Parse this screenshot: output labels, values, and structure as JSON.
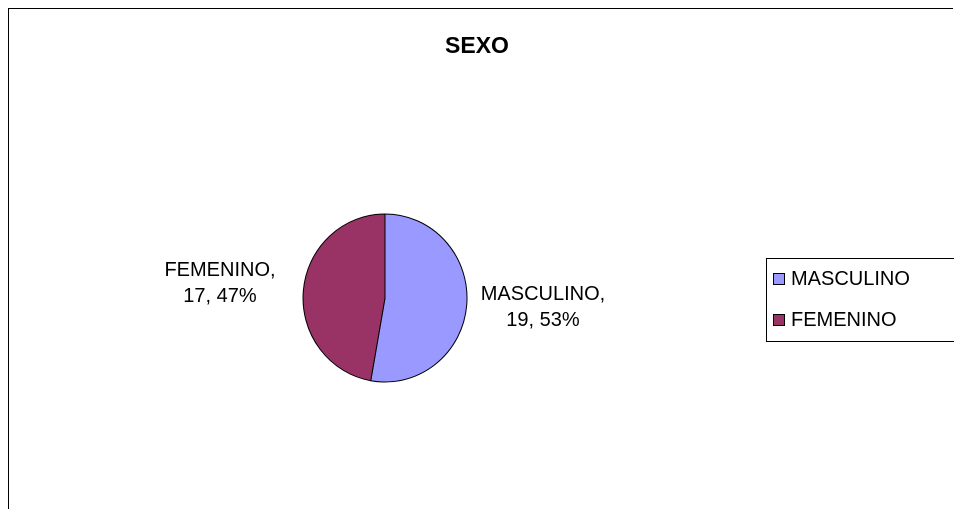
{
  "chart_data": {
    "type": "pie",
    "title": "SEXO",
    "categories": [
      "MASCULINO",
      "FEMENINO"
    ],
    "values": [
      19,
      17
    ],
    "percentages": [
      "53%",
      "47%"
    ],
    "colors": [
      "#9999ff",
      "#993366"
    ],
    "data_labels": [
      {
        "line1": "MASCULINO,",
        "line2": "19, 53%"
      },
      {
        "line1": "FEMENINO,",
        "line2": "17, 47%"
      }
    ],
    "legend": {
      "position": "right",
      "entries": [
        "MASCULINO",
        "FEMENINO"
      ]
    }
  }
}
